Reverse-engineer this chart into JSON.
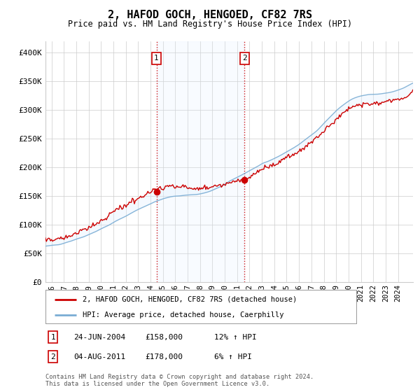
{
  "title": "2, HAFOD GOCH, HENGOED, CF82 7RS",
  "subtitle": "Price paid vs. HM Land Registry's House Price Index (HPI)",
  "ylabel_ticks": [
    "£0",
    "£50K",
    "£100K",
    "£150K",
    "£200K",
    "£250K",
    "£300K",
    "£350K",
    "£400K"
  ],
  "ytick_values": [
    0,
    50000,
    100000,
    150000,
    200000,
    250000,
    300000,
    350000,
    400000
  ],
  "ylim": [
    0,
    420000
  ],
  "xlim_start": 1995.5,
  "xlim_end": 2025.2,
  "transaction1_date": 2004.48,
  "transaction1_price": 158000,
  "transaction1_label": "1",
  "transaction2_date": 2011.59,
  "transaction2_price": 178000,
  "transaction2_label": "2",
  "shade_color": "#ddeeff",
  "shade_alpha": 0.5,
  "hpi_line_color": "#7aadd4",
  "price_line_color": "#cc0000",
  "vline_color": "#cc0000",
  "vline_style": ":",
  "grid_color": "#cccccc",
  "background_color": "#ffffff",
  "legend_label_property": "2, HAFOD GOCH, HENGOED, CF82 7RS (detached house)",
  "legend_label_hpi": "HPI: Average price, detached house, Caerphilly",
  "footer_text": "Contains HM Land Registry data © Crown copyright and database right 2024.\nThis data is licensed under the Open Government Licence v3.0.",
  "table_rows": [
    {
      "label": "1",
      "date": "24-JUN-2004",
      "price": "£158,000",
      "hpi": "12% ↑ HPI"
    },
    {
      "label": "2",
      "date": "04-AUG-2011",
      "price": "£178,000",
      "hpi": "6% ↑ HPI"
    }
  ],
  "xtick_years": [
    1996,
    1997,
    1998,
    1999,
    2000,
    2001,
    2002,
    2003,
    2004,
    2005,
    2006,
    2007,
    2008,
    2009,
    2010,
    2011,
    2012,
    2013,
    2014,
    2015,
    2016,
    2017,
    2018,
    2019,
    2020,
    2021,
    2022,
    2023,
    2024
  ]
}
